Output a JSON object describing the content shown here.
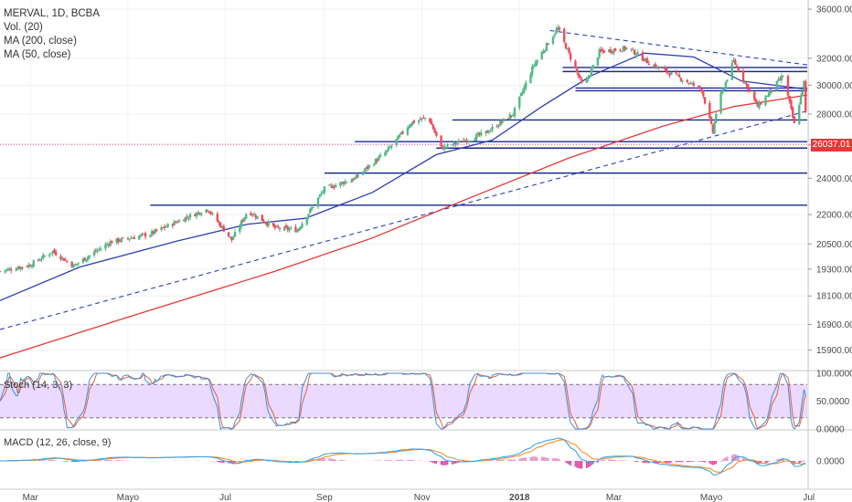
{
  "legend": {
    "symbol": "MERVAL, 1D, BCBA",
    "volume": "Vol. (20)",
    "ma200": "MA (200, close)",
    "ma50": "MA (50, close)"
  },
  "indicators": {
    "stoch_label": "Stoch (14, 3, 3)",
    "macd_label": "MACD (12, 26, close, 9)"
  },
  "last_price_label": "26037.01",
  "colors": {
    "up": "#53b987",
    "down": "#eb4d5c",
    "ma50": "#2e3fb3",
    "ma200": "#e53935",
    "horizontal_lines": "#1a2a8c",
    "stoch_k": "#3f8fdc",
    "stoch_d": "#e0603a",
    "stoch_band": "#e4ccff",
    "macd_line": "#3ba4e8",
    "signal_line": "#ff8c2a",
    "histogram_pos": "#e891c9",
    "histogram_neg": "#e04aa6"
  },
  "chart_data": [
    {
      "type": "candlestick",
      "title": "MERVAL, 1D, BCBA",
      "scale": "log",
      "ylim": [
        15200,
        36800
      ],
      "y_ticks": [
        "36000.00",
        "32000.00",
        "30000.00",
        "28000.00",
        "26000.00",
        "24000.00",
        "22000.00",
        "20500.00",
        "19300.00",
        "18100.00",
        "16900.00",
        "15900.00"
      ],
      "x_ticks": [
        "Mar",
        "Mayo",
        "Jul",
        "Sep",
        "Nov",
        "2018",
        "Mar",
        "Mayo",
        "Jul"
      ],
      "x_range": [
        "2017-02-10",
        "2018-06-30"
      ],
      "last_price": 26037.01,
      "price_path": [
        {
          "date": "2017-02-10",
          "close": 19200
        },
        {
          "date": "2017-03-01",
          "close": 19500
        },
        {
          "date": "2017-03-15",
          "close": 20150
        },
        {
          "date": "2017-03-28",
          "close": 19450
        },
        {
          "date": "2017-04-20",
          "close": 20600
        },
        {
          "date": "2017-05-15",
          "close": 21000
        },
        {
          "date": "2017-06-05",
          "close": 21800
        },
        {
          "date": "2017-06-20",
          "close": 22300
        },
        {
          "date": "2017-07-05",
          "close": 20700
        },
        {
          "date": "2017-07-15",
          "close": 22200
        },
        {
          "date": "2017-08-01",
          "close": 21300
        },
        {
          "date": "2017-08-15",
          "close": 21200
        },
        {
          "date": "2017-09-01",
          "close": 23400
        },
        {
          "date": "2017-09-20",
          "close": 24000
        },
        {
          "date": "2017-10-10",
          "close": 25600
        },
        {
          "date": "2017-10-25",
          "close": 27400
        },
        {
          "date": "2017-11-05",
          "close": 27800
        },
        {
          "date": "2017-11-13",
          "close": 25800
        },
        {
          "date": "2017-12-10",
          "close": 26700
        },
        {
          "date": "2017-12-28",
          "close": 28000
        },
        {
          "date": "2018-01-10",
          "close": 31500
        },
        {
          "date": "2018-01-25",
          "close": 34400
        },
        {
          "date": "2018-02-05",
          "close": 31200
        },
        {
          "date": "2018-02-10",
          "close": 29800
        },
        {
          "date": "2018-02-20",
          "close": 32500
        },
        {
          "date": "2018-03-10",
          "close": 32800
        },
        {
          "date": "2018-03-25",
          "close": 31500
        },
        {
          "date": "2018-04-10",
          "close": 30600
        },
        {
          "date": "2018-04-25",
          "close": 29700
        },
        {
          "date": "2018-05-02",
          "close": 26800
        },
        {
          "date": "2018-05-05",
          "close": 28700
        },
        {
          "date": "2018-05-15",
          "close": 31800
        },
        {
          "date": "2018-05-30",
          "close": 28500
        },
        {
          "date": "2018-06-15",
          "close": 30700
        },
        {
          "date": "2018-06-22",
          "close": 27300
        },
        {
          "date": "2018-06-28",
          "close": 30200
        },
        {
          "date": "2018-06-30",
          "close": 26037
        }
      ],
      "ma50": [
        {
          "date": "2017-02-10",
          "value": 17900
        },
        {
          "date": "2017-04-01",
          "value": 19400
        },
        {
          "date": "2017-06-01",
          "value": 20650
        },
        {
          "date": "2017-07-15",
          "value": 21500
        },
        {
          "date": "2017-08-20",
          "value": 21800
        },
        {
          "date": "2017-10-01",
          "value": 23200
        },
        {
          "date": "2017-11-10",
          "value": 25400
        },
        {
          "date": "2017-12-15",
          "value": 26300
        },
        {
          "date": "2018-01-15",
          "value": 28500
        },
        {
          "date": "2018-02-15",
          "value": 30700
        },
        {
          "date": "2018-03-20",
          "value": 32400
        },
        {
          "date": "2018-04-20",
          "value": 32100
        },
        {
          "date": "2018-05-20",
          "value": 30300
        },
        {
          "date": "2018-06-30",
          "value": 29700
        }
      ],
      "ma200": [
        {
          "date": "2017-02-10",
          "value": 15600
        },
        {
          "date": "2017-05-01",
          "value": 17200
        },
        {
          "date": "2017-08-01",
          "value": 19200
        },
        {
          "date": "2017-10-01",
          "value": 20800
        },
        {
          "date": "2017-12-01",
          "value": 22900
        },
        {
          "date": "2018-02-01",
          "value": 25200
        },
        {
          "date": "2018-04-01",
          "value": 27200
        },
        {
          "date": "2018-05-15",
          "value": 28500
        },
        {
          "date": "2018-06-30",
          "value": 29300
        }
      ],
      "horizontal_levels": [
        {
          "value": 31300,
          "from": "2018-01-28",
          "to": "2018-06-30"
        },
        {
          "value": 31000,
          "from": "2018-01-28",
          "to": "2018-06-30"
        },
        {
          "value": 29800,
          "from": "2018-02-05",
          "to": "2018-06-30"
        },
        {
          "value": 29600,
          "from": "2018-02-05",
          "to": "2018-06-30"
        },
        {
          "value": 27600,
          "from": "2017-11-20",
          "to": "2018-06-30"
        },
        {
          "value": 26200,
          "from": "2017-09-20",
          "to": "2018-06-30"
        },
        {
          "value": 25800,
          "from": "2017-11-10",
          "to": "2018-06-30"
        },
        {
          "value": 24300,
          "from": "2017-09-01",
          "to": "2018-06-30"
        },
        {
          "value": 22500,
          "from": "2017-05-15",
          "to": "2018-06-30"
        }
      ],
      "trendlines": [
        {
          "style": "dashed",
          "from": {
            "date": "2017-02-10",
            "value": 16700
          },
          "to": {
            "date": "2018-06-30",
            "value": 28200
          }
        },
        {
          "style": "dashed",
          "from": {
            "date": "2018-01-20",
            "value": 34200
          },
          "to": {
            "date": "2018-06-30",
            "value": 31500
          }
        }
      ]
    },
    {
      "type": "line",
      "title": "Stoch (14, 3, 3)",
      "ylim": [
        0,
        100
      ],
      "y_ticks": [
        "100.0000",
        "50.0000",
        "0.0000"
      ],
      "band": [
        20,
        80
      ]
    },
    {
      "type": "line",
      "title": "MACD (12, 26, close, 9)",
      "y_ticks": [
        "0.0000"
      ]
    }
  ]
}
